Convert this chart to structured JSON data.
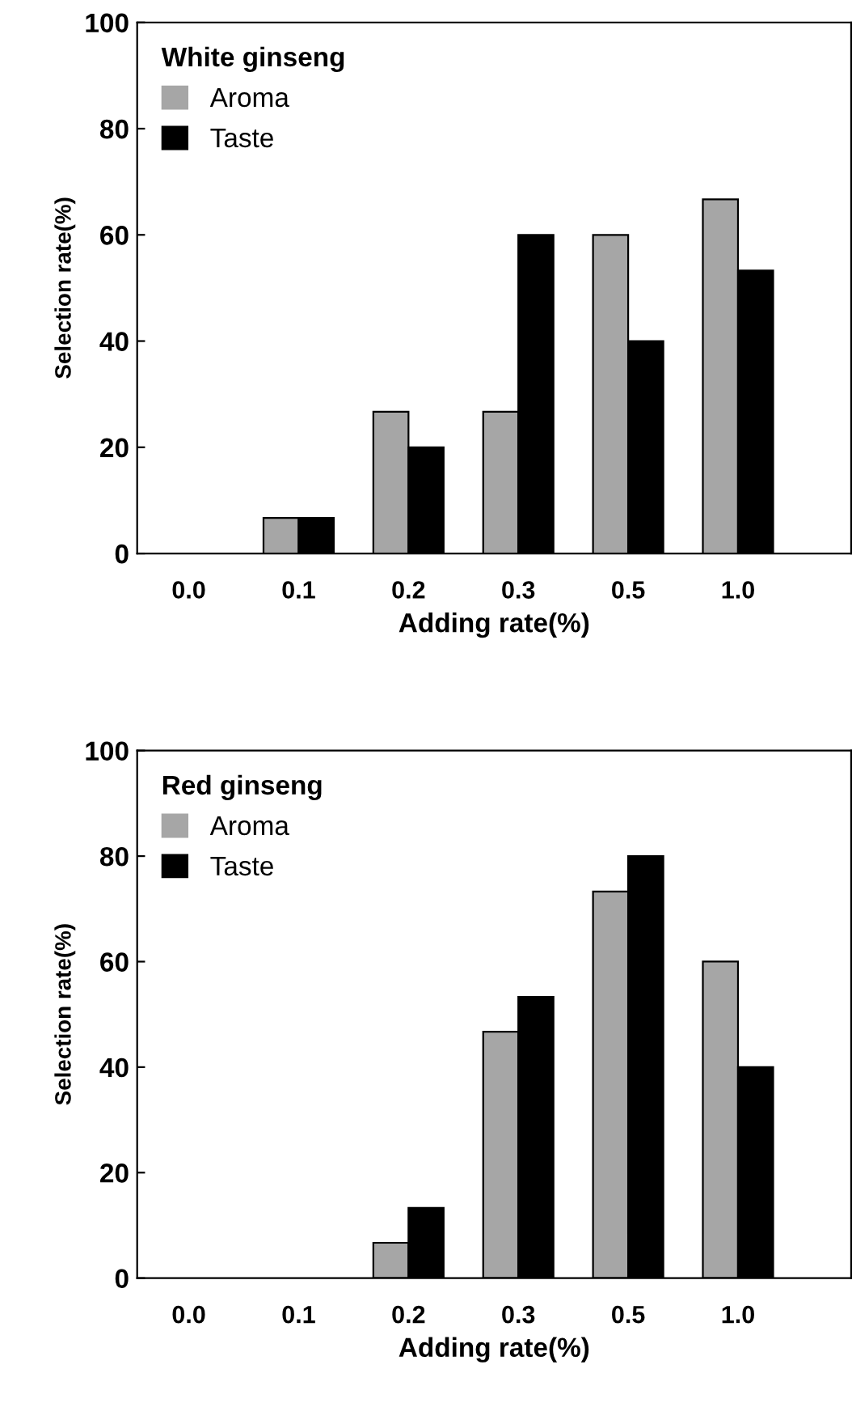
{
  "chart_data": [
    {
      "type": "bar",
      "legend_title": "White ginseng",
      "xlabel": "Adding rate(%)",
      "ylabel": "Selection rate(%)",
      "categories": [
        "0.0",
        "0.1",
        "0.2",
        "0.3",
        "0.5",
        "1.0"
      ],
      "series": [
        {
          "name": "Aroma",
          "color": "#a6a6a6",
          "values": [
            0,
            6.7,
            26.7,
            26.7,
            60,
            66.7
          ]
        },
        {
          "name": "Taste",
          "color": "#000000",
          "values": [
            0,
            6.7,
            20,
            60,
            40,
            53.3
          ]
        }
      ],
      "ylim": [
        0,
        100
      ],
      "yticks": [
        0,
        20,
        40,
        60,
        80,
        100
      ],
      "grid": false,
      "legend": "top left"
    },
    {
      "type": "bar",
      "legend_title": "Red ginseng",
      "xlabel": "Adding rate(%)",
      "ylabel": "Selection rate(%)",
      "categories": [
        "0.0",
        "0.1",
        "0.2",
        "0.3",
        "0.5",
        "1.0"
      ],
      "series": [
        {
          "name": "Aroma",
          "color": "#a6a6a6",
          "values": [
            0,
            0,
            6.7,
            46.7,
            73.3,
            60
          ]
        },
        {
          "name": "Taste",
          "color": "#000000",
          "values": [
            0,
            0,
            13.3,
            53.3,
            80,
            40
          ]
        }
      ],
      "ylim": [
        0,
        100
      ],
      "yticks": [
        0,
        20,
        40,
        60,
        80,
        100
      ],
      "grid": false,
      "legend": "top left"
    }
  ]
}
